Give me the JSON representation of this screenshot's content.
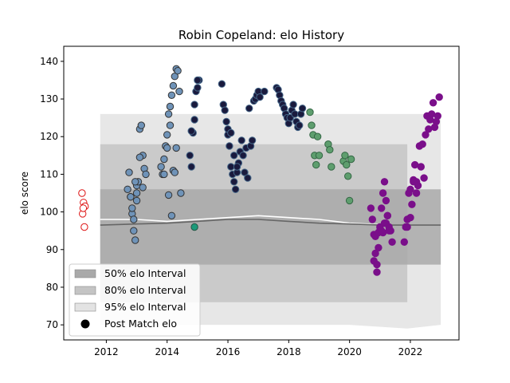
{
  "chart_data": {
    "type": "scatter",
    "title": "Robin Copeland: elo History",
    "xlabel": "",
    "ylabel": "elo score",
    "xlim": [
      2010.6,
      2023.6
    ],
    "ylim": [
      66,
      144
    ],
    "x_ticks": [
      2012,
      2014,
      2016,
      2018,
      2020,
      2022
    ],
    "y_ticks": [
      70,
      80,
      90,
      100,
      110,
      120,
      130,
      140
    ],
    "grid": false,
    "legend_placement": "lower-left",
    "legend": [
      {
        "label": "50% elo Interval",
        "kind": "band",
        "color": "#a9a9a9"
      },
      {
        "label": "80% elo Interval",
        "kind": "band",
        "color": "#c4c4c4"
      },
      {
        "label": "95% elo Interval",
        "kind": "band",
        "color": "#e3e3e3"
      },
      {
        "label": "Post Match elo",
        "kind": "marker",
        "color": "#000000"
      }
    ],
    "intervals": [
      {
        "name": "95% elo Interval",
        "color": "#e3e3e3",
        "x": [
          2011.8,
          2014,
          2016,
          2018,
          2020,
          2021.9,
          2023
        ],
        "lower": [
          70,
          70,
          70,
          70,
          70,
          69,
          70
        ],
        "upper": [
          126,
          126,
          126,
          126,
          126,
          126,
          126
        ]
      },
      {
        "name": "80% elo Interval",
        "color": "#c4c4c4",
        "x": [
          2011.8,
          2014,
          2016,
          2018,
          2020,
          2021.9
        ],
        "lower": [
          76,
          76,
          76,
          76,
          76,
          76
        ],
        "upper": [
          118,
          118,
          118,
          118,
          118,
          118
        ]
      },
      {
        "name": "50% elo Interval",
        "color": "#a9a9a9",
        "x": [
          2011.8,
          2014,
          2016,
          2018,
          2020,
          2021.9,
          2023
        ],
        "lower": [
          86,
          86,
          86,
          86,
          86,
          86,
          86
        ],
        "upper": [
          106,
          106,
          106,
          106,
          106,
          106,
          106
        ]
      }
    ],
    "mean_lines": [
      {
        "color": "#ffffff",
        "x": [
          2011.8,
          2013,
          2014,
          2015,
          2016,
          2017,
          2018,
          2019,
          2020,
          2021.3
        ],
        "y": [
          98,
          98,
          97.5,
          98,
          98.5,
          99,
          98.5,
          98,
          97,
          96.5
        ]
      },
      {
        "color": "#666666",
        "x": [
          2011.8,
          2013,
          2014,
          2015,
          2016,
          2017,
          2018,
          2019,
          2020,
          2021,
          2022,
          2023
        ],
        "y": [
          96.5,
          96.8,
          97,
          97.5,
          98,
          98,
          97.5,
          97,
          96.8,
          96.5,
          96.5,
          96.5
        ]
      }
    ],
    "series": [
      {
        "name": "",
        "color": "#ffffff",
        "edge": "#dd1111",
        "x": [
          2011.2,
          2011.25,
          2011.3,
          2011.22,
          2011.28,
          2011.24
        ],
        "y": [
          105,
          102.5,
          101.5,
          99.5,
          96,
          101
        ]
      },
      {
        "name": "",
        "color": "#6f93b8",
        "edge": "#333333",
        "x": [
          2012.7,
          2012.75,
          2012.8,
          2012.85,
          2012.9,
          2012.95,
          2013,
          2013.05,
          2013.1,
          2013.15,
          2013.2,
          2013.25,
          2013.3,
          2012.8,
          2012.85,
          2012.9,
          2013.0,
          2013.1,
          2013.2,
          2013.0,
          2012.95,
          2013.8,
          2013.85,
          2013.9,
          2013.95,
          2014.0,
          2014.05,
          2014.1,
          2014.15,
          2014.2,
          2014.25,
          2014.3,
          2014.35,
          2014.4,
          2014.0,
          2014.1,
          2014.2,
          2014.3,
          2013.9,
          2014.05,
          2014.15,
          2014.25,
          2014.45
        ],
        "y": [
          106,
          110.5,
          104,
          99.5,
          95,
          92.5,
          107,
          108,
          122,
          123,
          115,
          111.5,
          110,
          104,
          101,
          98,
          105,
          114.5,
          106.5,
          103,
          108,
          112,
          110,
          114,
          117.5,
          120.5,
          126,
          128,
          131,
          133.5,
          136,
          138,
          137.5,
          132,
          117,
          123,
          111,
          117,
          110,
          104.5,
          99,
          110.5,
          105
        ]
      },
      {
        "name": "",
        "color": "#1b9a7a",
        "edge": "#225544",
        "x": [
          2014.9
        ],
        "y": [
          96
        ]
      },
      {
        "name": "",
        "color": "#1a1a3d",
        "edge": "#446688",
        "x": [
          2014.75,
          2014.8,
          2014.85,
          2014.9,
          2014.95,
          2015.0,
          2015.05,
          2014.8,
          2014.9,
          2015.0,
          2015.8,
          2015.85,
          2015.9,
          2015.95,
          2016.0,
          2016.05,
          2016.1,
          2016.15,
          2016.2,
          2016.25,
          2016.3,
          2016.35,
          2016.4,
          2016.45,
          2016.5,
          2016.55,
          2016.6,
          2016.65,
          2016.0,
          2016.1,
          2016.2,
          2016.3,
          2016.7,
          2016.75,
          2016.8,
          2016.85,
          2016.9,
          2016.95,
          2017.0,
          2017.05,
          2017.2,
          2017.6,
          2017.65,
          2017.7,
          2017.75,
          2017.8,
          2017.85,
          2017.9,
          2017.95,
          2018.0,
          2018.05,
          2018.1,
          2018.15,
          2018.2,
          2018.25,
          2018.3,
          2018.35,
          2018.4,
          2018.45
        ],
        "y": [
          115,
          112,
          121,
          124.5,
          132,
          133,
          135,
          121.5,
          128.5,
          135,
          134,
          128.5,
          127,
          124,
          120.5,
          117.5,
          112,
          110,
          108,
          106,
          110.5,
          113,
          116,
          119,
          115,
          110.5,
          117,
          109,
          122,
          121,
          115,
          112,
          127.5,
          117.5,
          119,
          129.5,
          130,
          131,
          132,
          130.5,
          132,
          133,
          132.5,
          131,
          129.5,
          128.5,
          127.5,
          126,
          125,
          123.5,
          125,
          127,
          128.5,
          126,
          124,
          122.5,
          123,
          126,
          127.5
        ]
      },
      {
        "name": "",
        "color": "#5e9e6e",
        "edge": "#336644",
        "x": [
          2018.7,
          2018.75,
          2018.8,
          2018.85,
          2018.9,
          2018.95,
          2019.0,
          2019.3,
          2019.35,
          2019.4,
          2019.8,
          2019.85,
          2019.9,
          2019.95,
          2020.0,
          2020.05
        ],
        "y": [
          126.5,
          123,
          120.5,
          115,
          112.5,
          120,
          115,
          118,
          116.5,
          112,
          113.5,
          115,
          112.5,
          109.5,
          103,
          114
        ]
      },
      {
        "name": "",
        "color": "#7a0f8a",
        "edge": "#7a0f8a",
        "x": [
          2020.7,
          2020.75,
          2020.8,
          2020.85,
          2020.9,
          2020.95,
          2021.0,
          2021.05,
          2021.1,
          2021.15,
          2021.2,
          2021.25,
          2021.3,
          2021.35,
          2021.4,
          2020.8,
          2020.9,
          2021.0,
          2021.1,
          2021.2,
          2021.3,
          2020.85,
          2020.95,
          2021.05,
          2021.15,
          2021.25,
          2021.8,
          2021.85,
          2021.9,
          2021.95,
          2022.0,
          2022.05,
          2022.1,
          2022.15,
          2022.2,
          2022.25,
          2022.3,
          2022.35,
          2022.4,
          2022.45,
          2022.5,
          2022.55,
          2022.6,
          2022.65,
          2022.7,
          2022.75,
          2022.8,
          2022.85,
          2022.9,
          2022.95,
          2021.9,
          2022.0,
          2022.1,
          2022.2
        ],
        "y": [
          101,
          98,
          94,
          89,
          84,
          90.5,
          96,
          101,
          105,
          108,
          103,
          99,
          96,
          95,
          92,
          87,
          86,
          95,
          94.5,
          97,
          95,
          93.5,
          94.5,
          95,
          97,
          99,
          92,
          96,
          98,
          105,
          106,
          102,
          108.5,
          112.5,
          108,
          107,
          117.5,
          112,
          118,
          109,
          120.5,
          125.5,
          122,
          124.5,
          126,
          129,
          122.5,
          124,
          125.5,
          130.5,
          96,
          98.5,
          108,
          105
        ]
      }
    ]
  }
}
